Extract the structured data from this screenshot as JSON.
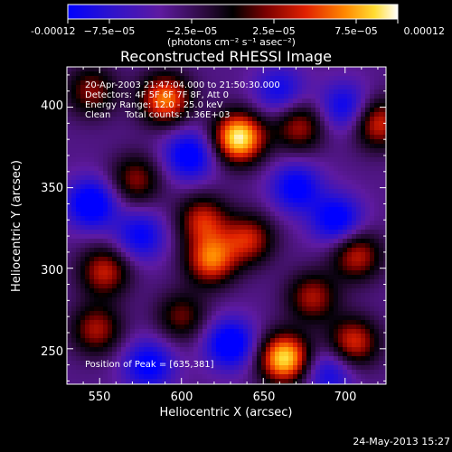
{
  "chart_data": {
    "type": "heatmap",
    "title": "Reconstructed RHESSI Image",
    "xlabel": "Heliocentric X (arcsec)",
    "ylabel": "Heliocentric Y (arcsec)",
    "xlim": [
      530,
      725
    ],
    "ylim": [
      228,
      425
    ],
    "x_ticks": [
      "550",
      "600",
      "650",
      "700"
    ],
    "y_ticks": [
      "250",
      "300",
      "350",
      "400"
    ],
    "colorbar": {
      "label": "(photons cm⁻² s⁻¹ asec⁻²)",
      "range": [
        -0.00012,
        0.00012
      ],
      "ticks": [
        "-0.00012",
        "−7.5e−05",
        "−2.5e−05",
        "2.5e−05",
        "7.5e−05",
        "0.00012"
      ]
    },
    "annotations": [
      "20-Apr-2003 21:47:04.000 to 21:50:30.000",
      "Detectors: 4F 5F 6F 7F 8F, Att 0",
      "Energy Range: 12.0 - 25.0 keV",
      "Clean     Total counts: 1.36E+03"
    ],
    "peak_label": "Position of Peak = [635,381]",
    "peak": [
      635,
      381
    ],
    "sources": [
      {
        "x": 635,
        "y": 381,
        "amp": 1.0
      },
      {
        "x": 663,
        "y": 244,
        "amp": 0.95
      },
      {
        "x": 590,
        "y": 405,
        "amp": 0.75
      },
      {
        "x": 618,
        "y": 305,
        "amp": 0.7
      },
      {
        "x": 553,
        "y": 298,
        "amp": 0.55
      },
      {
        "x": 548,
        "y": 262,
        "amp": 0.5
      },
      {
        "x": 672,
        "y": 388,
        "amp": 0.5
      },
      {
        "x": 707,
        "y": 308,
        "amp": 0.55
      },
      {
        "x": 705,
        "y": 254,
        "amp": 0.6
      },
      {
        "x": 720,
        "y": 390,
        "amp": 0.6
      },
      {
        "x": 641,
        "y": 318,
        "amp": 0.55
      },
      {
        "x": 680,
        "y": 282,
        "amp": 0.5
      },
      {
        "x": 572,
        "y": 355,
        "amp": 0.45
      },
      {
        "x": 600,
        "y": 270,
        "amp": 0.4
      },
      {
        "x": 545,
        "y": 410,
        "amp": 0.45
      },
      {
        "x": 613,
        "y": 330,
        "amp": 0.55
      },
      {
        "x": 670,
        "y": 350,
        "amp": -0.5
      },
      {
        "x": 545,
        "y": 340,
        "amp": -0.6
      },
      {
        "x": 605,
        "y": 370,
        "amp": -0.55
      },
      {
        "x": 630,
        "y": 253,
        "amp": -0.6
      },
      {
        "x": 695,
        "y": 330,
        "amp": -0.55
      },
      {
        "x": 700,
        "y": 400,
        "amp": -0.45
      },
      {
        "x": 580,
        "y": 240,
        "amp": -0.5
      },
      {
        "x": 575,
        "y": 320,
        "amp": -0.45
      },
      {
        "x": 660,
        "y": 410,
        "amp": -0.4
      },
      {
        "x": 690,
        "y": 235,
        "amp": -0.4
      }
    ]
  },
  "footer": {
    "timestamp": "24-May-2013 15:27"
  }
}
